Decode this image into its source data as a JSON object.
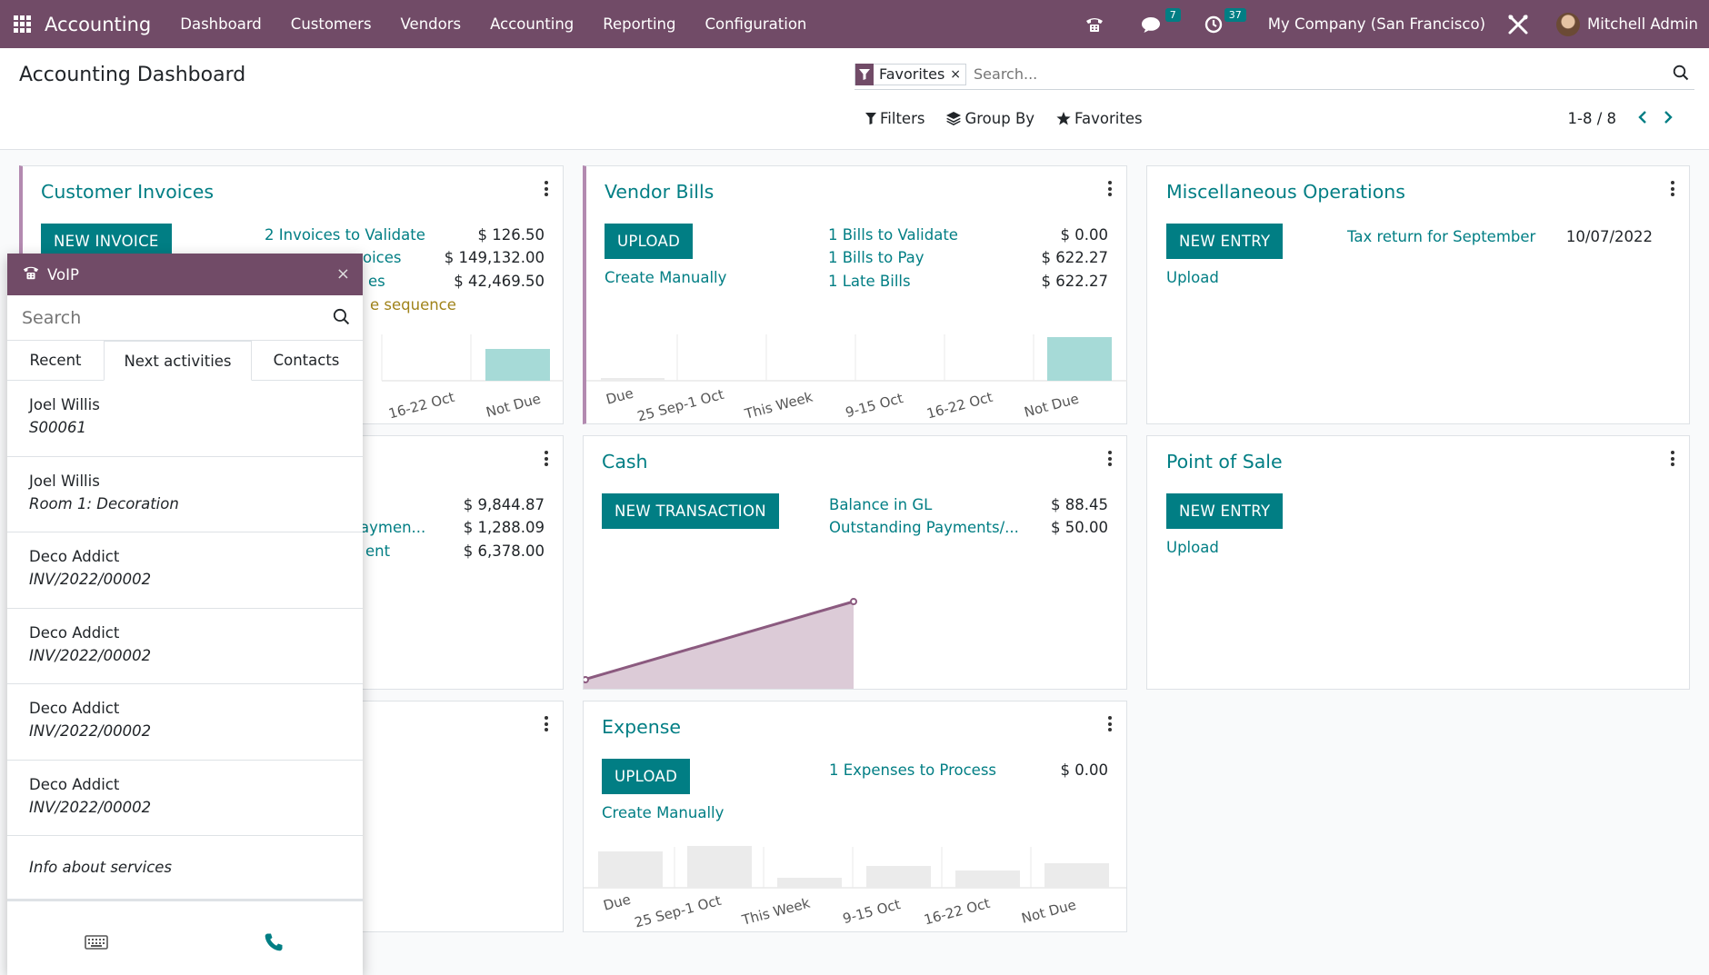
{
  "navbar": {
    "app_name": "Accounting",
    "menu": [
      "Dashboard",
      "Customers",
      "Vendors",
      "Accounting",
      "Reporting",
      "Configuration"
    ],
    "messages_count": "7",
    "activities_count": "37",
    "company": "My Company (San Francisco)",
    "user": "Mitchell Admin"
  },
  "control_panel": {
    "title": "Accounting Dashboard",
    "facet": "Favorites",
    "search_placeholder": "Search...",
    "filters_label": "Filters",
    "groupby_label": "Group By",
    "favorites_label": "Favorites",
    "pager": "1-8 / 8"
  },
  "cards": {
    "customer_invoices": {
      "title": "Customer Invoices",
      "button": "NEW INVOICE",
      "rows": [
        {
          "label": "2 Invoices to Validate",
          "value": "$ 126.50"
        },
        {
          "label": "oices",
          "value": "$ 149,132.00"
        },
        {
          "label": "es",
          "value": "$ 42,469.50"
        }
      ],
      "warning": "e sequence",
      "chart_labels": [
        "16-22 Oct",
        "Not Due"
      ]
    },
    "vendor_bills": {
      "title": "Vendor Bills",
      "button": "UPLOAD",
      "link": "Create Manually",
      "rows": [
        {
          "label": "1 Bills to Validate",
          "value": "$ 0.00"
        },
        {
          "label": "1 Bills to Pay",
          "value": "$ 622.27"
        },
        {
          "label": "1 Late Bills",
          "value": "$ 622.27"
        }
      ],
      "chart_labels": [
        "Due",
        "25 Sep-1 Oct",
        "This Week",
        "9-15 Oct",
        "16-22 Oct",
        "Not Due"
      ]
    },
    "misc": {
      "title": "Miscellaneous Operations",
      "button": "NEW ENTRY",
      "link": "Upload",
      "row_label": "Tax return for September",
      "row_date": "10/07/2022"
    },
    "bank": {
      "rows": [
        {
          "label": "",
          "value": "$ 9,844.87"
        },
        {
          "label": "aymen...",
          "value": "$ 1,288.09"
        },
        {
          "label": "ent",
          "value": "$ 6,378.00"
        }
      ]
    },
    "cash": {
      "title": "Cash",
      "button": "NEW TRANSACTION",
      "rows": [
        {
          "label": "Balance in GL",
          "value": "$ 88.45"
        },
        {
          "label": "Outstanding Payments/...",
          "value": "$ 50.00"
        }
      ]
    },
    "pos": {
      "title": "Point of Sale",
      "button": "NEW ENTRY",
      "link": "Upload"
    },
    "expense": {
      "title": "Expense",
      "button": "UPLOAD",
      "link": "Create Manually",
      "rows": [
        {
          "label": "1 Expenses to Process",
          "value": "$ 0.00"
        }
      ],
      "chart_labels": [
        "Due",
        "25 Sep-1 Oct",
        "This Week",
        "9-15 Oct",
        "16-22 Oct",
        "Not Due"
      ]
    }
  },
  "voip": {
    "title": "VoIP",
    "search_placeholder": "Search",
    "tabs": [
      "Recent",
      "Next activities",
      "Contacts"
    ],
    "items": [
      {
        "name": "Joel Willis",
        "sub": "S00061"
      },
      {
        "name": "Joel Willis",
        "sub": "Room 1: Decoration"
      },
      {
        "name": "Deco Addict",
        "sub": "INV/2022/00002"
      },
      {
        "name": "Deco Addict",
        "sub": "INV/2022/00002"
      },
      {
        "name": "Deco Addict",
        "sub": "INV/2022/00002"
      },
      {
        "name": "Deco Addict",
        "sub": "INV/2022/00002"
      }
    ],
    "info": "Info about services"
  },
  "colors": {
    "brand": "#714b67",
    "accent": "#017e84",
    "chart_teal": "#a6dad7",
    "chart_gray": "#ebebeb",
    "cash_fill": "#dccbd7"
  }
}
